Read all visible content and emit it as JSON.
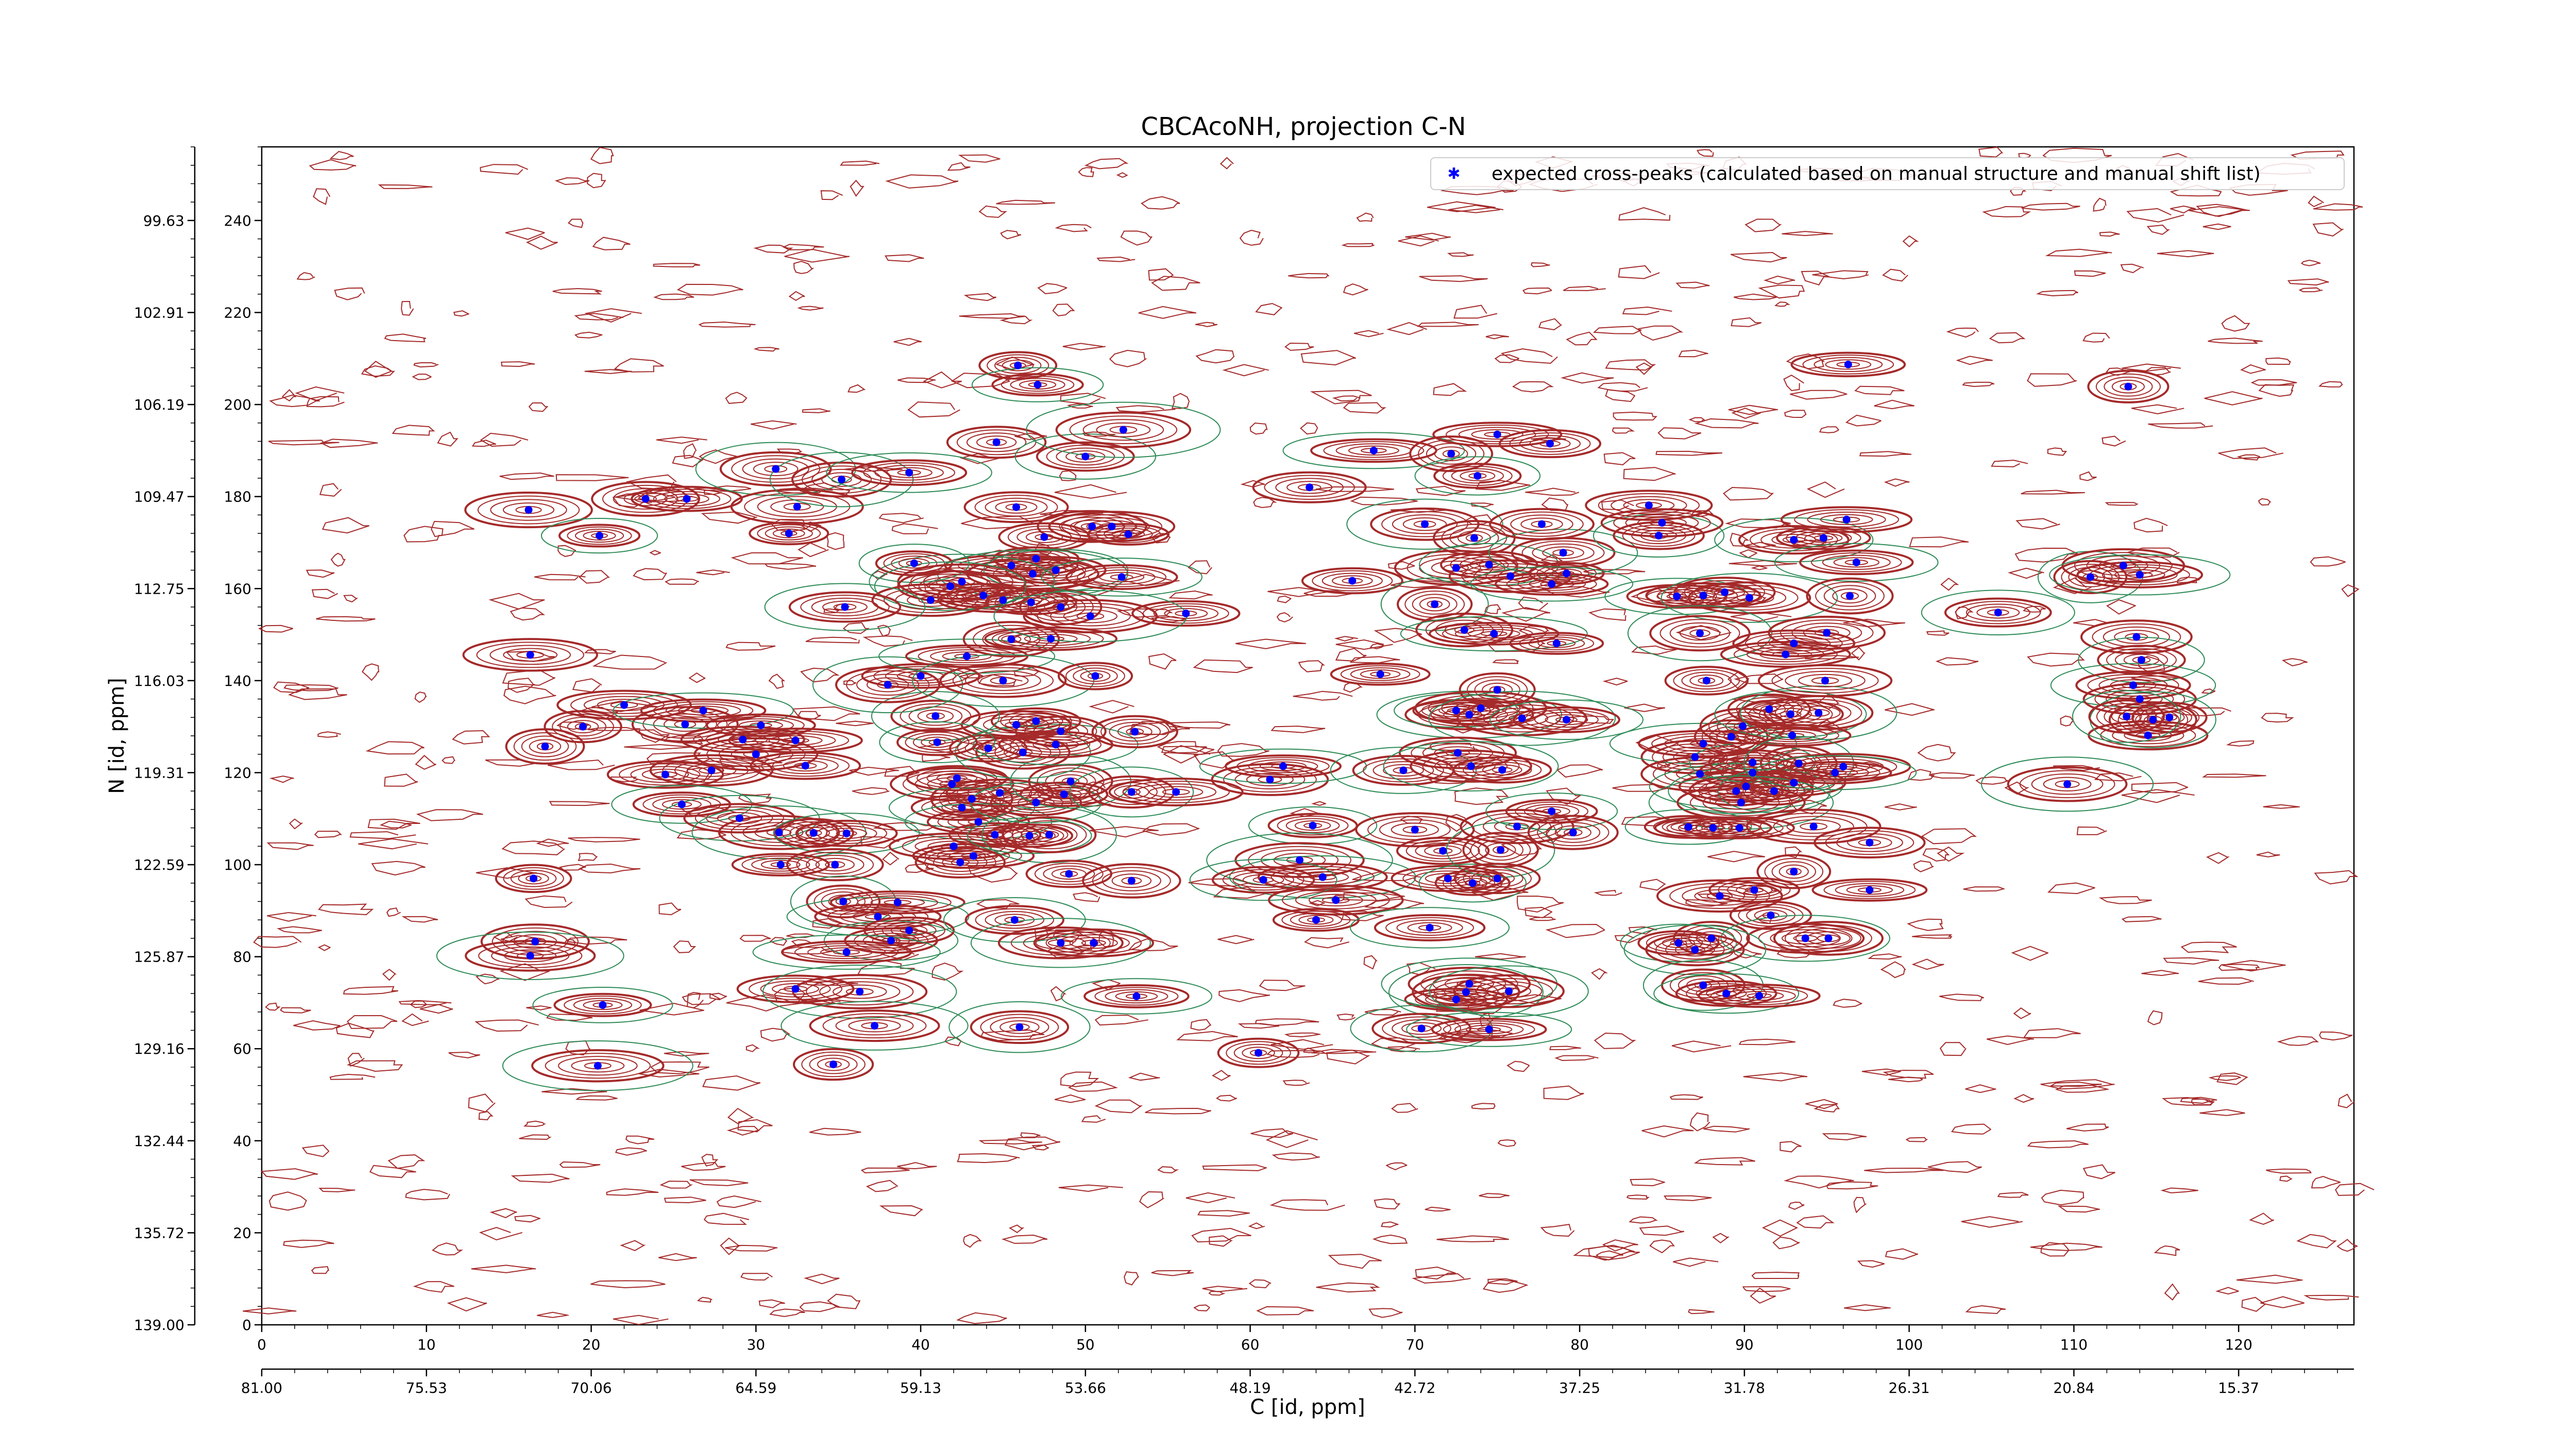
{
  "chart_data": {
    "type": "scatter",
    "title": "CBCAcoNH, projection C-N",
    "xlabel": "C [id, ppm]",
    "ylabel": "N [id, ppm]",
    "xlim": [
      0,
      127
    ],
    "ylim": [
      0,
      256
    ],
    "x_ticks": [
      "0",
      "10",
      "20",
      "30",
      "40",
      "50",
      "60",
      "70",
      "80",
      "90",
      "100",
      "110",
      "120"
    ],
    "x_ppm_ticks": [
      "81.00",
      "75.53",
      "70.06",
      "64.59",
      "59.13",
      "53.66",
      "48.19",
      "42.72",
      "37.25",
      "31.78",
      "26.31",
      "20.84",
      "15.37"
    ],
    "y_ticks": [
      "0",
      "20",
      "40",
      "60",
      "80",
      "100",
      "120",
      "140",
      "160",
      "180",
      "200",
      "220",
      "240"
    ],
    "y_ppm_ticks": [
      "139.00",
      "135.72",
      "132.44",
      "129.16",
      "125.87",
      "122.59",
      "119.31",
      "116.03",
      "112.75",
      "109.47",
      "106.19",
      "102.91",
      "99.63"
    ],
    "legend": {
      "placement": "top-right",
      "entries": [
        "expected cross-peaks (calculated based on manual structure and manual shift list)"
      ]
    },
    "colors": {
      "marker": "#0000ff",
      "positive_contour": "#a52a2a",
      "negative_contour": "#2e8b57"
    },
    "series": [
      {
        "name": "expected cross-peaks (calculated based on manual structure and manual shift list)",
        "points": [
          [
            16.2,
            177.1
          ],
          [
            20.5,
            171.5
          ],
          [
            23.3,
            179.5
          ],
          [
            25.8,
            179.5
          ],
          [
            31.2,
            186.0
          ],
          [
            32.5,
            177.8
          ],
          [
            32.0,
            172.0
          ],
          [
            35.2,
            183.7
          ],
          [
            39.3,
            185.2
          ],
          [
            45.9,
            208.5
          ],
          [
            47.1,
            204.3
          ],
          [
            44.6,
            191.8
          ],
          [
            50.0,
            188.7
          ],
          [
            52.3,
            194.5
          ],
          [
            45.8,
            177.7
          ],
          [
            47.5,
            171.2
          ],
          [
            50.4,
            173.5
          ],
          [
            51.6,
            173.5
          ],
          [
            52.6,
            171.8
          ],
          [
            47.0,
            166.5
          ],
          [
            45.5,
            165.0
          ],
          [
            46.8,
            163.2
          ],
          [
            48.2,
            164.0
          ],
          [
            42.5,
            161.5
          ],
          [
            43.8,
            158.5
          ],
          [
            45.0,
            157.5
          ],
          [
            46.7,
            157.0
          ],
          [
            48.5,
            156.0
          ],
          [
            39.6,
            165.5
          ],
          [
            41.8,
            160.5
          ],
          [
            40.6,
            157.5
          ],
          [
            35.4,
            156.0
          ],
          [
            52.2,
            162.5
          ],
          [
            56.1,
            154.6
          ],
          [
            16.3,
            145.6
          ],
          [
            22.0,
            134.7
          ],
          [
            19.5,
            130.0
          ],
          [
            17.2,
            125.7
          ],
          [
            25.7,
            130.5
          ],
          [
            26.8,
            133.5
          ],
          [
            29.2,
            127.2
          ],
          [
            30.3,
            130.3
          ],
          [
            30.0,
            124.0
          ],
          [
            32.4,
            127.0
          ],
          [
            33.0,
            121.5
          ],
          [
            27.3,
            120.5
          ],
          [
            24.5,
            119.6
          ],
          [
            25.5,
            113.1
          ],
          [
            29.0,
            110.1
          ],
          [
            31.4,
            107.0
          ],
          [
            31.5,
            100.0
          ],
          [
            33.5,
            106.9
          ],
          [
            35.5,
            106.8
          ],
          [
            34.8,
            100.0
          ],
          [
            35.3,
            92.0
          ],
          [
            37.4,
            88.7
          ],
          [
            38.6,
            91.8
          ],
          [
            38.2,
            83.5
          ],
          [
            39.3,
            85.7
          ],
          [
            35.5,
            81.0
          ],
          [
            32.4,
            73.0
          ],
          [
            36.3,
            72.4
          ],
          [
            37.2,
            65.0
          ],
          [
            41.9,
            117.5
          ],
          [
            42.2,
            118.8
          ],
          [
            43.1,
            114.3
          ],
          [
            42.5,
            112.4
          ],
          [
            43.5,
            109.3
          ],
          [
            42.0,
            104.0
          ],
          [
            42.4,
            100.5
          ],
          [
            43.2,
            101.9
          ],
          [
            44.5,
            106.5
          ],
          [
            46.6,
            106.3
          ],
          [
            47.8,
            106.5
          ],
          [
            44.8,
            115.6
          ],
          [
            47.0,
            113.5
          ],
          [
            48.7,
            115.3
          ],
          [
            49.1,
            118.1
          ],
          [
            44.1,
            125.3
          ],
          [
            46.2,
            124.4
          ],
          [
            48.2,
            126.1
          ],
          [
            45.8,
            130.4
          ],
          [
            47.0,
            131.2
          ],
          [
            48.5,
            129.0
          ],
          [
            40.9,
            132.3
          ],
          [
            41.0,
            126.6
          ],
          [
            38.0,
            139.1
          ],
          [
            40.0,
            141.0
          ],
          [
            42.8,
            145.3
          ],
          [
            45.5,
            149.0
          ],
          [
            47.9,
            149.1
          ],
          [
            50.3,
            154.0
          ],
          [
            45.0,
            140.0
          ],
          [
            50.6,
            141.0
          ],
          [
            53.0,
            128.9
          ],
          [
            52.8,
            115.8
          ],
          [
            55.5,
            115.8
          ],
          [
            49.0,
            98.0
          ],
          [
            52.8,
            96.5
          ],
          [
            45.7,
            88.0
          ],
          [
            48.5,
            83.0
          ],
          [
            50.5,
            83.0
          ],
          [
            46.0,
            64.7
          ],
          [
            53.1,
            71.4
          ],
          [
            34.7,
            56.6
          ],
          [
            20.4,
            56.3
          ],
          [
            20.7,
            69.5
          ],
          [
            16.6,
            83.3
          ],
          [
            16.3,
            80.2
          ],
          [
            16.5,
            97.0
          ],
          [
            61.2,
            118.5
          ],
          [
            62.0,
            121.4
          ],
          [
            60.5,
            59.1
          ],
          [
            63.8,
            108.5
          ],
          [
            63.0,
            101.0
          ],
          [
            64.4,
            97.3
          ],
          [
            60.8,
            96.7
          ],
          [
            65.2,
            92.3
          ],
          [
            64.0,
            88.0
          ],
          [
            67.5,
            190.0
          ],
          [
            63.6,
            182.0
          ],
          [
            66.2,
            161.7
          ],
          [
            67.9,
            141.4
          ],
          [
            70.6,
            174.0
          ],
          [
            72.2,
            189.3
          ],
          [
            73.8,
            184.5
          ],
          [
            73.6,
            171.0
          ],
          [
            72.5,
            164.5
          ],
          [
            74.5,
            165.2
          ],
          [
            71.2,
            156.6
          ],
          [
            73.0,
            151.0
          ],
          [
            74.8,
            150.2
          ],
          [
            75.8,
            162.7
          ],
          [
            79.0,
            167.8
          ],
          [
            79.2,
            163.3
          ],
          [
            78.3,
            161.0
          ],
          [
            77.7,
            174.0
          ],
          [
            78.6,
            148.1
          ],
          [
            73.3,
            132.6
          ],
          [
            72.5,
            133.5
          ],
          [
            74.0,
            134.0
          ],
          [
            75.0,
            138.0
          ],
          [
            76.5,
            131.8
          ],
          [
            79.2,
            131.5
          ],
          [
            69.3,
            120.5
          ],
          [
            72.6,
            124.3
          ],
          [
            73.4,
            121.4
          ],
          [
            75.3,
            120.6
          ],
          [
            70.0,
            107.6
          ],
          [
            71.7,
            103.0
          ],
          [
            72.0,
            97.0
          ],
          [
            73.5,
            96.0
          ],
          [
            75.2,
            103.2
          ],
          [
            76.2,
            108.3
          ],
          [
            78.3,
            111.6
          ],
          [
            79.6,
            107.0
          ],
          [
            75.0,
            97.0
          ],
          [
            70.9,
            86.3
          ],
          [
            72.5,
            70.7
          ],
          [
            73.3,
            74.1
          ],
          [
            73.1,
            72.3
          ],
          [
            75.7,
            72.5
          ],
          [
            70.4,
            64.4
          ],
          [
            74.5,
            64.2
          ],
          [
            75.0,
            193.5
          ],
          [
            78.2,
            191.5
          ],
          [
            84.8,
            171.5
          ],
          [
            85.0,
            174.3
          ],
          [
            84.2,
            178.1
          ],
          [
            85.9,
            158.3
          ],
          [
            87.5,
            158.5
          ],
          [
            88.8,
            159.2
          ],
          [
            90.3,
            158.0
          ],
          [
            87.3,
            150.3
          ],
          [
            87.7,
            140.0
          ],
          [
            87.0,
            123.4
          ],
          [
            87.5,
            126.3
          ],
          [
            87.3,
            119.7
          ],
          [
            89.5,
            116.0
          ],
          [
            90.1,
            117.0
          ],
          [
            90.5,
            120.0
          ],
          [
            90.5,
            122.2
          ],
          [
            89.2,
            127.8
          ],
          [
            89.9,
            130.1
          ],
          [
            91.5,
            133.8
          ],
          [
            92.8,
            132.7
          ],
          [
            94.5,
            133.0
          ],
          [
            92.9,
            128.1
          ],
          [
            93.3,
            122.0
          ],
          [
            93.0,
            117.8
          ],
          [
            91.8,
            116.0
          ],
          [
            89.8,
            113.5
          ],
          [
            86.6,
            108.2
          ],
          [
            88.1,
            108.0
          ],
          [
            89.7,
            108.0
          ],
          [
            94.2,
            108.3
          ],
          [
            97.6,
            104.8
          ],
          [
            93.0,
            98.5
          ],
          [
            88.5,
            93.2
          ],
          [
            90.6,
            94.5
          ],
          [
            91.6,
            89.0
          ],
          [
            88.0,
            84.0
          ],
          [
            86.0,
            83.0
          ],
          [
            93.7,
            84.0
          ],
          [
            95.1,
            84.0
          ],
          [
            87.0,
            81.5
          ],
          [
            87.5,
            73.8
          ],
          [
            88.9,
            72.0
          ],
          [
            90.9,
            71.5
          ],
          [
            97.6,
            94.5
          ],
          [
            93.0,
            170.6
          ],
          [
            94.8,
            171.0
          ],
          [
            96.2,
            175.0
          ],
          [
            96.8,
            165.7
          ],
          [
            96.4,
            158.4
          ],
          [
            93.0,
            148.1
          ],
          [
            92.5,
            145.7
          ],
          [
            95.0,
            150.4
          ],
          [
            94.9,
            140.0
          ],
          [
            96.0,
            121.3
          ],
          [
            95.5,
            120.0
          ],
          [
            109.6,
            117.5
          ],
          [
            105.4,
            154.8
          ],
          [
            111.0,
            162.5
          ],
          [
            113.0,
            165.0
          ],
          [
            114.0,
            163.0
          ],
          [
            113.3,
            203.9
          ],
          [
            96.3,
            208.7
          ],
          [
            113.8,
            149.5
          ],
          [
            114.1,
            144.5
          ],
          [
            113.6,
            139.0
          ],
          [
            114.0,
            136.0
          ],
          [
            114.5,
            128.1
          ],
          [
            114.8,
            131.5
          ],
          [
            115.8,
            132.0
          ],
          [
            113.2,
            132.2
          ]
        ]
      }
    ]
  }
}
